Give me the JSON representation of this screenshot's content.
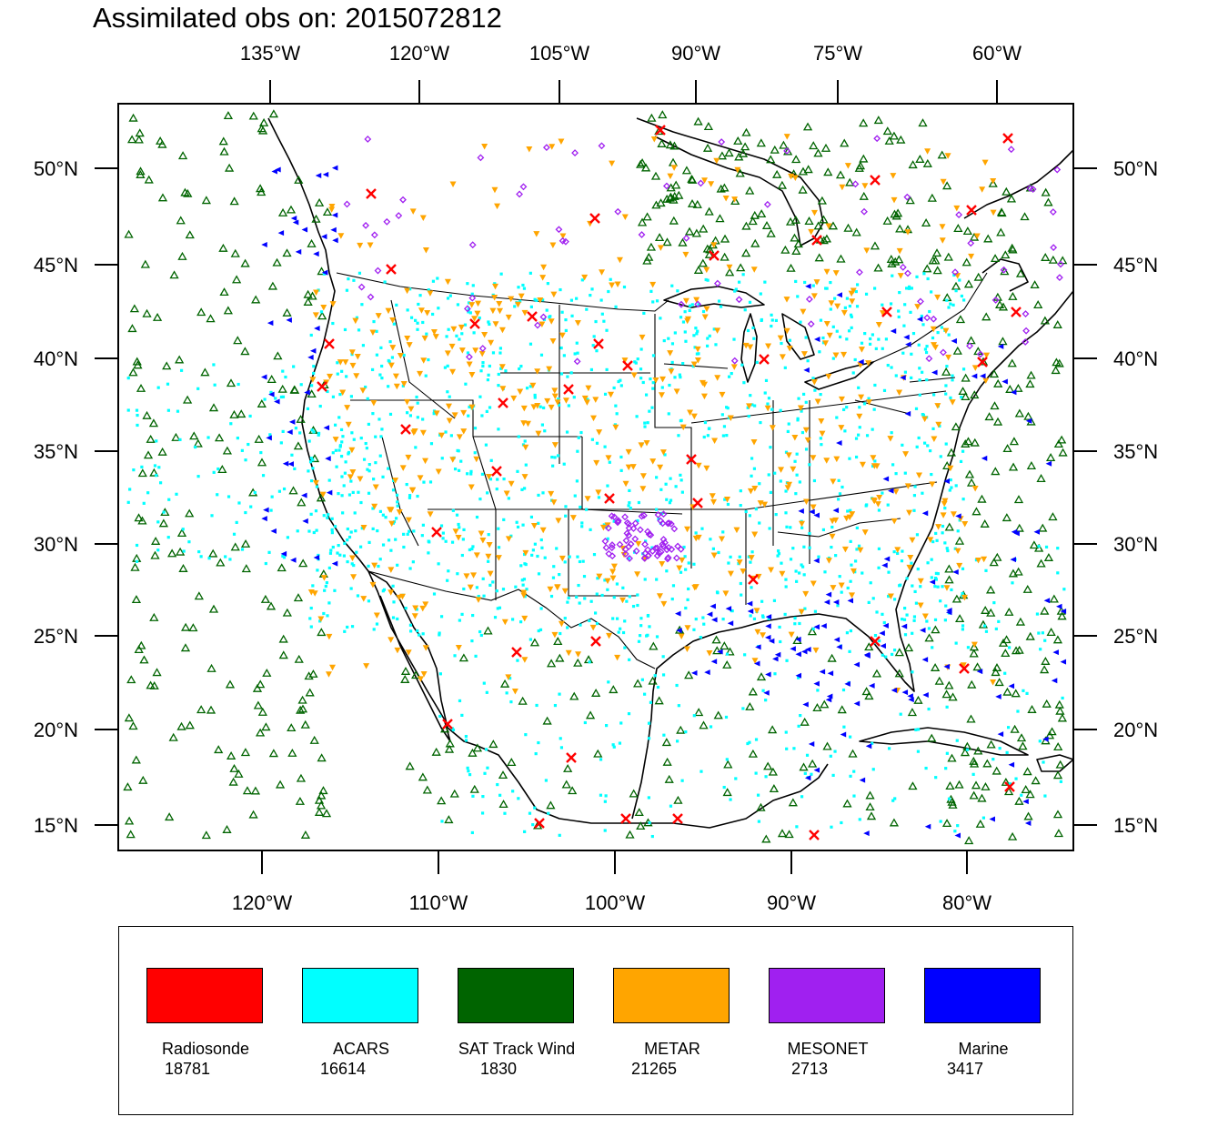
{
  "title": "Assimilated obs on: 2015072812",
  "axes": {
    "top_lon_labels": [
      "135°W",
      "120°W",
      "105°W",
      "90°W",
      "75°W",
      "60°W"
    ],
    "bottom_lon_labels": [
      "120°W",
      "110°W",
      "100°W",
      "90°W",
      "80°W"
    ],
    "left_lat_labels": [
      "50°N",
      "45°N",
      "40°N",
      "35°N",
      "30°N",
      "25°N",
      "20°N",
      "15°N"
    ],
    "right_lat_labels": [
      "50°N",
      "45°N",
      "40°N",
      "35°N",
      "30°N",
      "25°N",
      "20°N",
      "15°N"
    ]
  },
  "legend": [
    {
      "key": "radiosonde",
      "name": "Radiosonde",
      "count": "18781",
      "color": "#ff0000"
    },
    {
      "key": "acars",
      "name": "ACARS",
      "count": "16614",
      "color": "#00ffff"
    },
    {
      "key": "sat-track-wind",
      "name": "SAT Track Wind",
      "count": "1830",
      "color": "#006400"
    },
    {
      "key": "metar",
      "name": "METAR",
      "count": "21265",
      "color": "#ffa500"
    },
    {
      "key": "mesonet",
      "name": "MESONET",
      "count": "2713",
      "color": "#a020f0"
    },
    {
      "key": "marine",
      "name": "Marine",
      "count": "3417",
      "color": "#0000ff"
    }
  ],
  "colors": {
    "coastline": "#000000",
    "radiosonde": "#ff0000",
    "acars": "#00ffff",
    "sat_track_wind": "#006400",
    "metar": "#ffa500",
    "mesonet": "#a020f0",
    "marine": "#0000ff"
  }
}
